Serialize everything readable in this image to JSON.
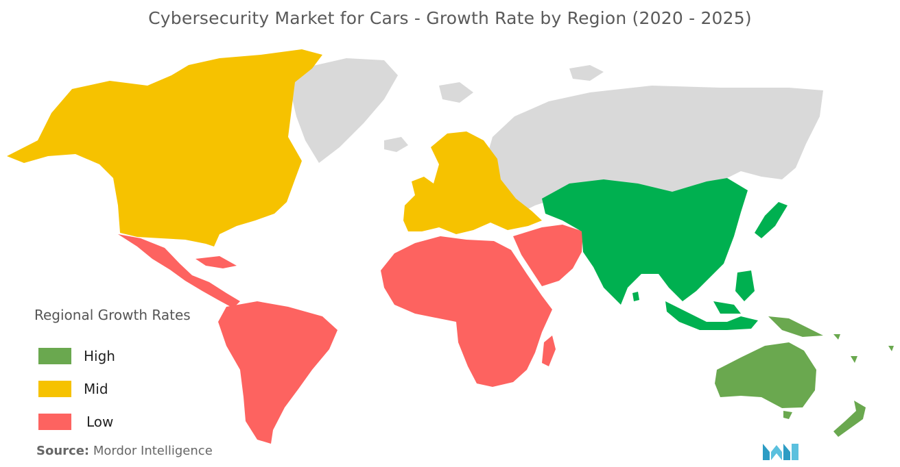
{
  "title": "Cybersecurity Market for Cars - Growth Rate by Region (2020 - 2025)",
  "legend": {
    "title": "Regional Growth Rates",
    "items": [
      {
        "label": "High",
        "color": "#6aa84f"
      },
      {
        "label": "Mid",
        "color": "#f6c200"
      },
      {
        "label": "Low",
        "color": "#fd6360"
      }
    ]
  },
  "colors": {
    "asia": "#00b050",
    "unclassified": "#d9d9d9"
  },
  "source": {
    "prefix": "Source:",
    "text": "Mordor Intelligence"
  },
  "logo": {
    "icon": "mordor-intelligence-logo-icon"
  }
}
